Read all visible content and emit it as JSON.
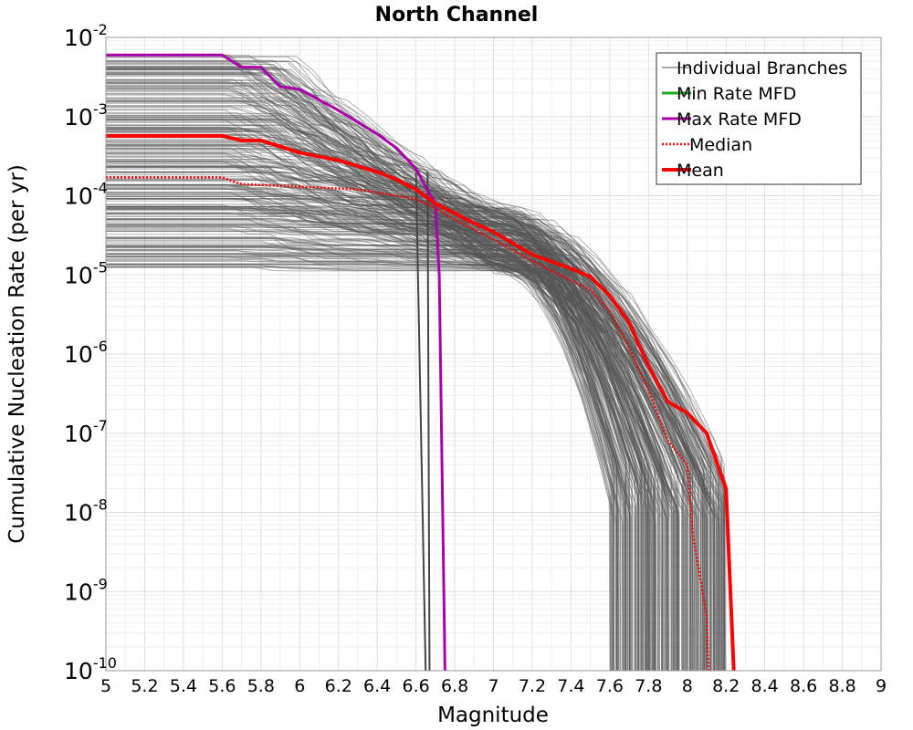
{
  "chart_data": {
    "type": "line",
    "title": "North Channel",
    "xlabel": "Magnitude",
    "ylabel": "Cumulative Nucleation Rate (per yr)",
    "xlim": [
      5,
      9
    ],
    "ylim": [
      1e-10,
      0.01
    ],
    "y_scale": "log",
    "grid": true,
    "legend_position": "top-right",
    "x_ticks": [
      "5",
      "5.2",
      "5.4",
      "5.6",
      "5.8",
      "6",
      "6.2",
      "6.4",
      "6.6",
      "6.8",
      "7",
      "7.2",
      "7.4",
      "7.6",
      "7.8",
      "8",
      "8.2",
      "8.4",
      "8.6",
      "8.8",
      "9"
    ],
    "y_ticks": [
      {
        "base": "10",
        "exp": "-2",
        "value": 0.01
      },
      {
        "base": "10",
        "exp": "-3",
        "value": 0.001
      },
      {
        "base": "10",
        "exp": "-4",
        "value": 0.0001
      },
      {
        "base": "10",
        "exp": "-5",
        "value": 1e-05
      },
      {
        "base": "10",
        "exp": "-6",
        "value": 1e-06
      },
      {
        "base": "10",
        "exp": "-7",
        "value": 1e-07
      },
      {
        "base": "10",
        "exp": "-8",
        "value": 1e-08
      },
      {
        "base": "10",
        "exp": "-9",
        "value": 1e-09
      },
      {
        "base": "10",
        "exp": "-10",
        "value": 1e-10
      }
    ],
    "series": [
      {
        "name": "Individual Branches",
        "color": "#555555",
        "style": "thin-many",
        "branch_count": 300,
        "rate_range_at_m5": [
          1.2e-05,
          0.006
        ],
        "tail_end_range": [
          7.6,
          8.2
        ]
      },
      {
        "name": "Min Rate MFD",
        "color": "#22aa22",
        "style": "solid",
        "x": [],
        "y": []
      },
      {
        "name": "Max Rate MFD",
        "color": "#aa00aa",
        "style": "solid",
        "x": [
          5.0,
          5.6,
          5.7,
          5.8,
          5.9,
          6.0,
          6.2,
          6.4,
          6.5,
          6.6,
          6.65,
          6.7,
          6.72,
          6.75
        ],
        "y": [
          0.006,
          0.006,
          0.0042,
          0.0042,
          0.0024,
          0.0022,
          0.0012,
          0.0006,
          0.0004,
          0.00022,
          0.00013,
          8e-05,
          1e-05,
          1e-10
        ]
      },
      {
        "name": "Median",
        "color": "#ff0000",
        "style": "dotted",
        "x": [
          5.0,
          5.6,
          5.7,
          6.0,
          6.3,
          6.5,
          6.6,
          6.7,
          6.8,
          7.0,
          7.2,
          7.4,
          7.5,
          7.6,
          7.7,
          7.8,
          7.9,
          8.0,
          8.03,
          8.1,
          8.11
        ],
        "y": [
          0.00017,
          0.00017,
          0.00014,
          0.00013,
          0.00012,
          0.0001,
          9e-05,
          7e-05,
          5e-05,
          2.8e-05,
          1.5e-05,
          8.5e-06,
          6.5e-06,
          3.5e-06,
          1.2e-06,
          3.5e-07,
          8e-08,
          4e-08,
          5e-09,
          5e-10,
          1e-10
        ]
      },
      {
        "name": "Mean",
        "color": "#ff0000",
        "style": "thick",
        "x": [
          5.0,
          5.6,
          5.7,
          5.8,
          6.0,
          6.2,
          6.4,
          6.5,
          6.6,
          6.7,
          6.8,
          6.9,
          7.0,
          7.2,
          7.4,
          7.5,
          7.6,
          7.7,
          7.8,
          7.9,
          8.0,
          8.1,
          8.2,
          8.24
        ],
        "y": [
          0.00057,
          0.00057,
          0.0005,
          0.0005,
          0.00035,
          0.00028,
          0.0002,
          0.00016,
          0.00012,
          8e-05,
          6e-05,
          4.5e-05,
          3.5e-05,
          1.8e-05,
          1.2e-05,
          9.5e-06,
          5.5e-06,
          2.5e-06,
          7e-07,
          2.5e-07,
          1.8e-07,
          1e-07,
          2e-08,
          1e-10
        ]
      }
    ],
    "extra_vertical_drops": [
      {
        "color": "#444444",
        "from_x": 6.6,
        "to_x": 6.65,
        "to_y": 1e-10
      },
      {
        "color": "#444444",
        "from_x": 6.66,
        "to_x": 6.67,
        "to_y": 1e-10
      }
    ]
  }
}
